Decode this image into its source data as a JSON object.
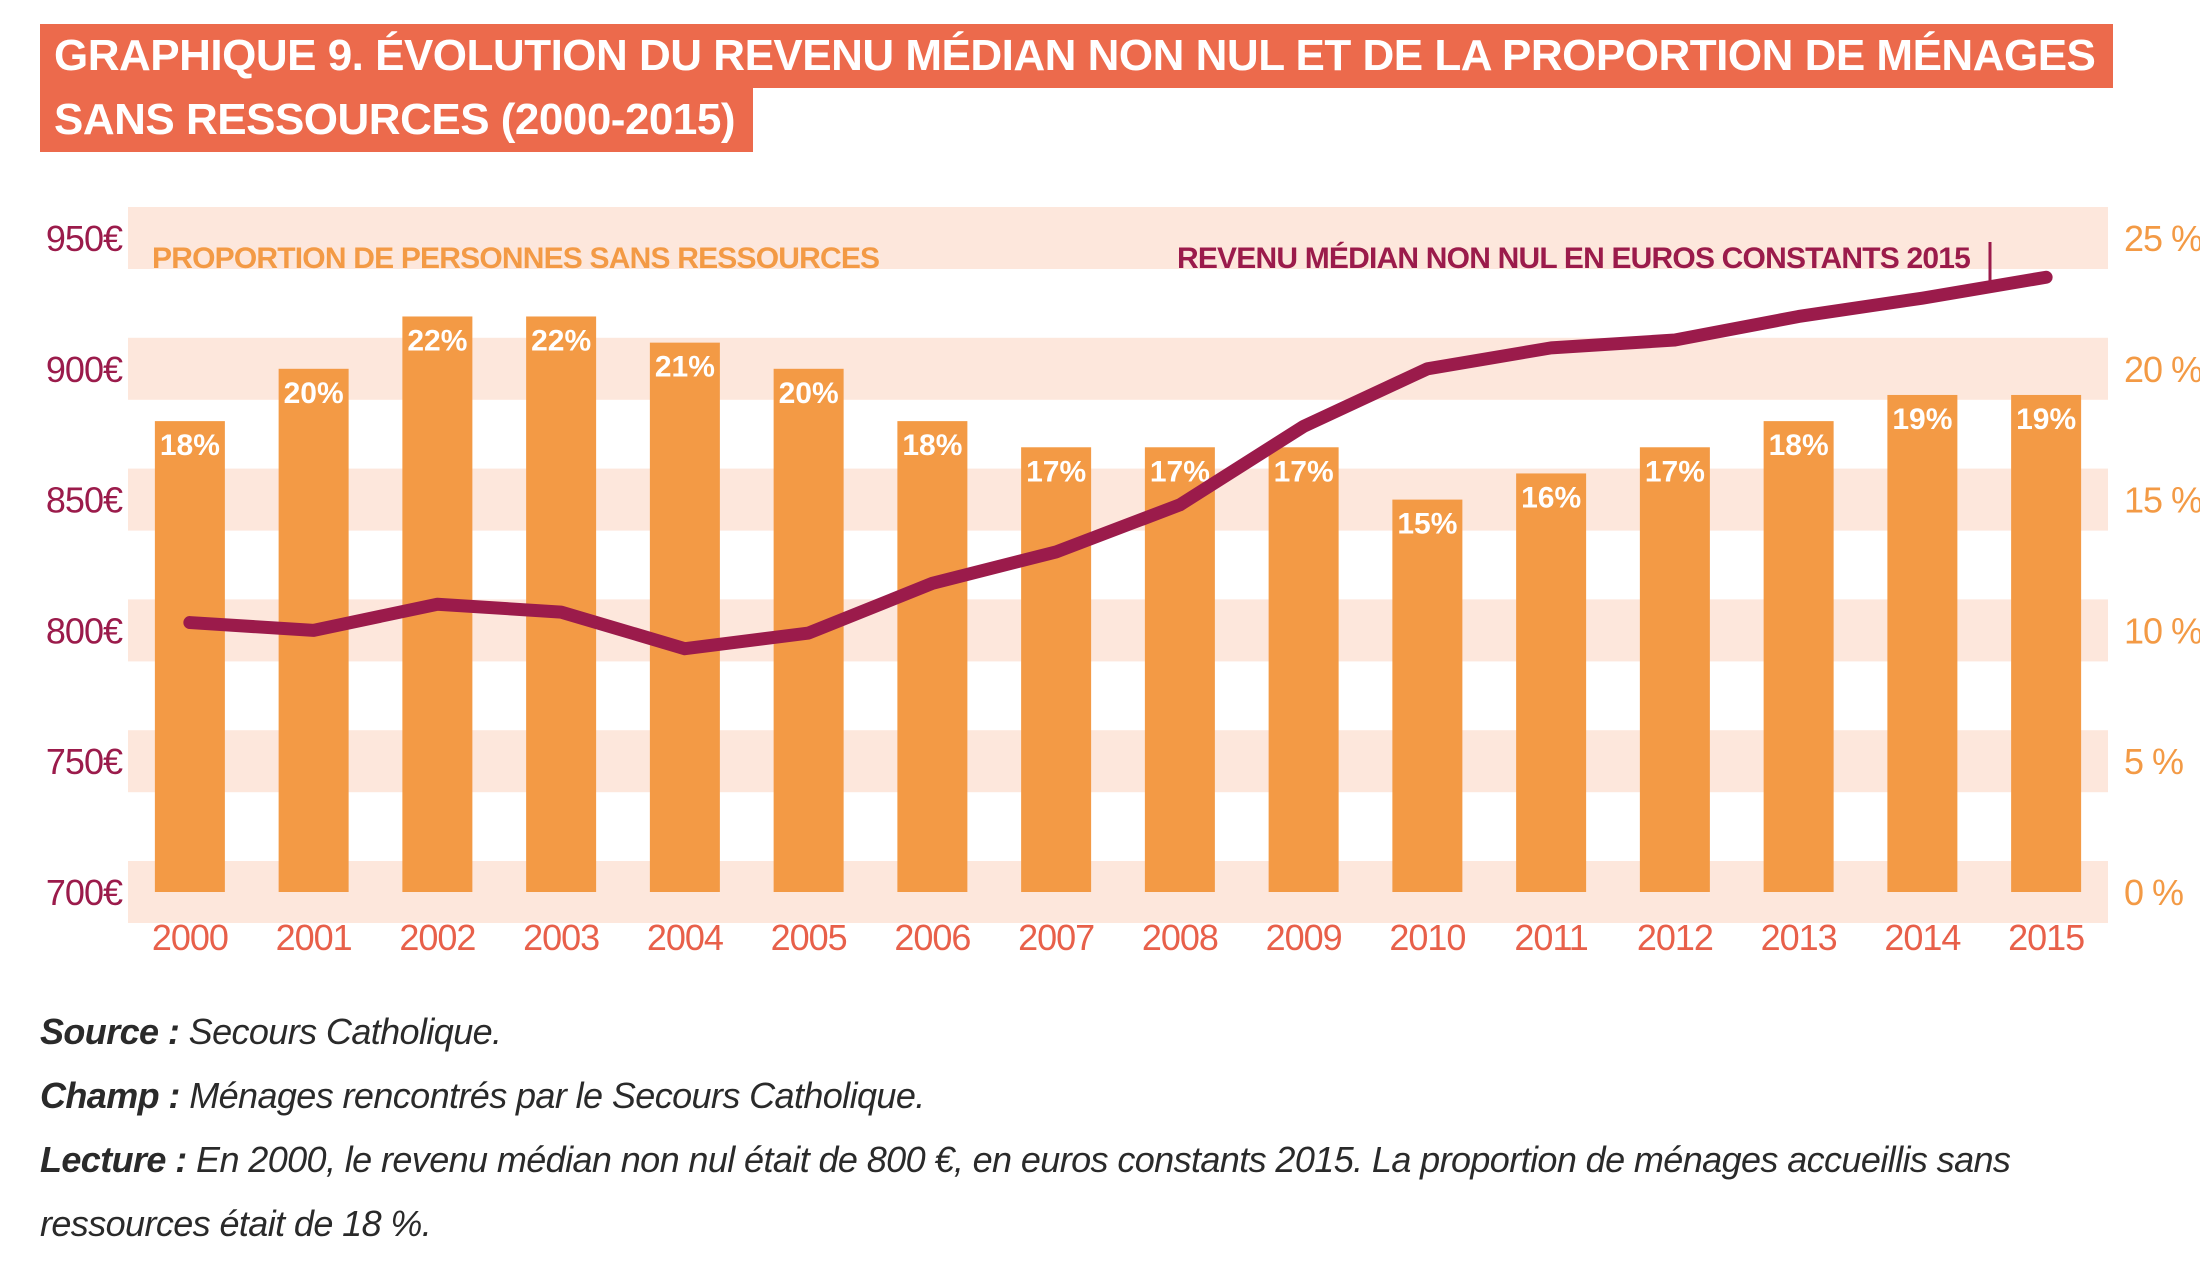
{
  "title": {
    "line1": "GRAPHIQUE 9. ÉVOLUTION DU REVENU MÉDIAN NON NUL ET DE LA PROPORTION DE MÉNAGES",
    "line2": "SANS RESSOURCES (2000-2015)"
  },
  "colors": {
    "title_bg": "#ec6a4c",
    "bar": "#f39a45",
    "line": "#9b1b4b",
    "band": "#fde7dc",
    "left_axis_text": "#9b1b4b",
    "right_axis_text": "#f39a45",
    "x_axis_text": "#e8604a"
  },
  "chart_data": {
    "type": "bar",
    "categories": [
      "2000",
      "2001",
      "2002",
      "2003",
      "2004",
      "2005",
      "2006",
      "2007",
      "2008",
      "2009",
      "2010",
      "2011",
      "2012",
      "2013",
      "2014",
      "2015"
    ],
    "series": [
      {
        "name": "PROPORTION DE PERSONNES SANS RESSOURCES",
        "type": "bar",
        "axis": "right",
        "values": [
          18,
          20,
          22,
          22,
          21,
          20,
          18,
          17,
          17,
          17,
          15,
          16,
          17,
          18,
          19,
          19
        ],
        "labels": [
          "18%",
          "20%",
          "22%",
          "22%",
          "21%",
          "20%",
          "18%",
          "17%",
          "17%",
          "17%",
          "15%",
          "16%",
          "17%",
          "18%",
          "19%",
          "19%"
        ]
      },
      {
        "name": "REVENU MÉDIAN NON NUL EN EUROS CONSTANTS 2015",
        "type": "line",
        "axis": "left",
        "values": [
          803,
          800,
          810,
          807,
          793,
          799,
          818,
          830,
          848,
          878,
          900,
          908,
          911,
          920,
          927,
          935
        ]
      }
    ],
    "y_left": {
      "ticks": [
        "950€",
        "900€",
        "850€",
        "800€",
        "750€",
        "700€"
      ],
      "range": [
        700,
        950
      ]
    },
    "y_right": {
      "ticks": [
        "25 %",
        "20 %",
        "15 %",
        "10 %",
        "5 %",
        "0 %"
      ],
      "range": [
        0,
        25
      ]
    },
    "grid_bands": true
  },
  "notes": [
    {
      "label": "Source :",
      "text": " Secours Catholique."
    },
    {
      "label": "Champ :",
      "text": " Ménages rencontrés par le Secours Catholique."
    },
    {
      "label": "Lecture :",
      "text": " En 2000, le revenu médian non nul était de 800 €, en euros constants 2015. La proportion de ménages accueillis sans ressources était de 18 %."
    }
  ]
}
